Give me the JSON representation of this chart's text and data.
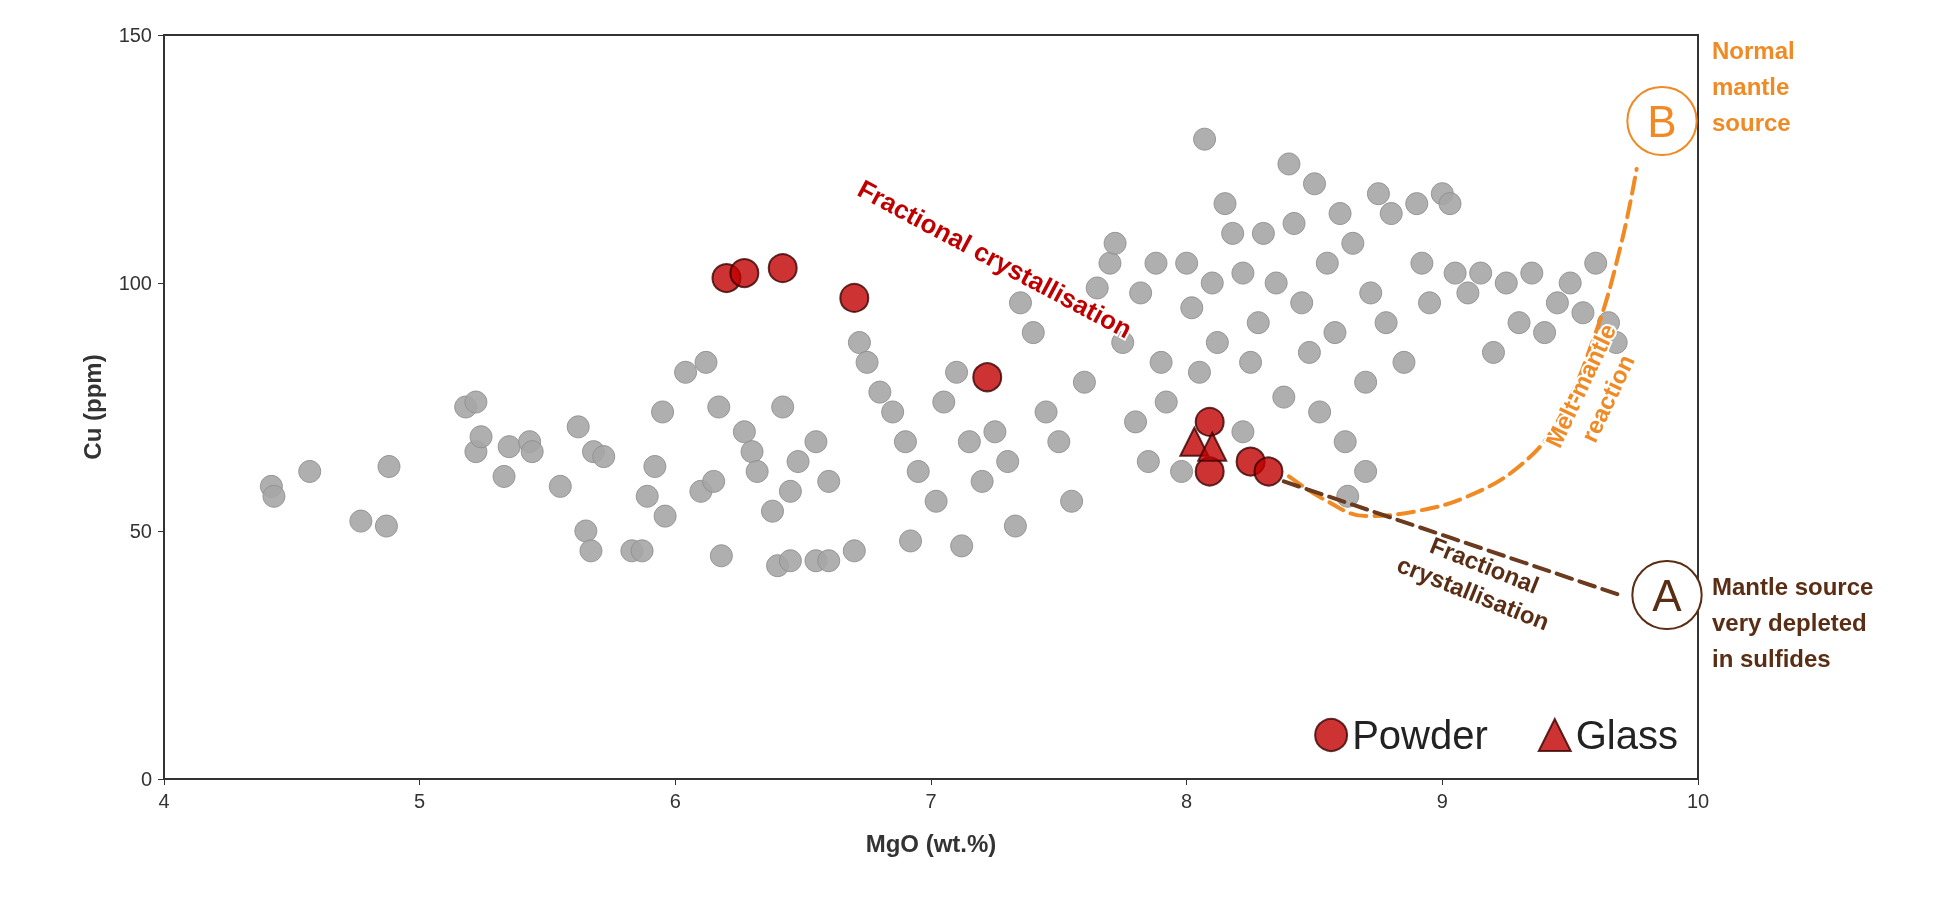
{
  "chart_data": {
    "type": "scatter",
    "xlabel": "MgO (wt.%)",
    "ylabel": "Cu (ppm)",
    "xlim": [
      4,
      10
    ],
    "xticks": [
      4,
      5,
      6,
      7,
      8,
      9,
      10
    ],
    "ylim": [
      0,
      150
    ],
    "yticks": [
      0,
      50,
      100,
      150
    ],
    "grid": false,
    "legend": "bottom right",
    "series": [
      {
        "color": "#a6a6a6",
        "marker": "circle",
        "x": [
          4.42,
          4.43,
          4.57,
          4.77,
          4.87,
          4.88,
          5.18,
          5.22,
          5.22,
          5.24,
          5.33,
          5.35,
          5.43,
          5.44,
          5.55,
          5.62,
          5.65,
          5.67,
          5.68,
          5.72,
          5.83,
          5.87,
          5.89,
          5.92,
          5.95,
          5.96,
          6.04,
          6.12,
          6.1,
          6.15,
          6.18,
          6.17,
          6.27,
          6.3,
          6.32,
          6.4,
          6.45,
          6.55,
          6.6,
          6.38,
          6.42,
          6.45,
          6.48,
          6.55,
          6.6,
          6.7,
          6.72,
          6.75,
          6.8,
          6.85,
          6.9,
          6.92,
          6.95,
          7.02,
          7.05,
          7.1,
          7.15,
          7.2,
          7.12,
          7.25,
          7.3,
          7.33,
          7.35,
          7.4,
          7.45,
          7.5,
          7.55,
          7.6,
          7.65,
          7.7,
          7.72,
          7.75,
          7.8,
          7.82,
          7.85,
          7.88,
          7.9,
          7.92,
          7.98,
          8.0,
          8.02,
          8.05,
          8.07,
          8.1,
          8.12,
          8.15,
          8.18,
          8.22,
          8.25,
          8.28,
          8.3,
          8.35,
          8.38,
          8.4,
          8.42,
          8.45,
          8.48,
          8.5,
          8.52,
          8.55,
          8.58,
          8.6,
          8.62,
          8.65,
          8.7,
          8.72,
          8.75,
          8.78,
          8.8,
          8.85,
          8.9,
          8.92,
          8.95,
          9.0,
          9.03,
          9.05,
          9.1,
          9.15,
          9.2,
          9.25,
          9.3,
          9.35,
          9.4,
          9.45,
          9.5,
          9.55,
          9.6,
          9.65,
          9.68,
          8.63,
          8.7,
          8.22
        ],
        "values": [
          59,
          57,
          62,
          52,
          51,
          63,
          75,
          76,
          66,
          69,
          61,
          67,
          68,
          66,
          59,
          71,
          50,
          46,
          66,
          65,
          46,
          46,
          57,
          63,
          74,
          53,
          82,
          84,
          58,
          60,
          45,
          75,
          70,
          66,
          62,
          43,
          44,
          44,
          44,
          54,
          75,
          58,
          64,
          68,
          60,
          46,
          88,
          84,
          78,
          74,
          68,
          48,
          62,
          56,
          76,
          82,
          68,
          60,
          47,
          70,
          64,
          51,
          96,
          90,
          74,
          68,
          56,
          80,
          99,
          104,
          108,
          88,
          72,
          98,
          64,
          104,
          84,
          76,
          62,
          104,
          95,
          82,
          129,
          100,
          88,
          116,
          110,
          102,
          84,
          92,
          110,
          100,
          77,
          124,
          112,
          96,
          86,
          120,
          74,
          104,
          90,
          114,
          68,
          108,
          80,
          98,
          118,
          92,
          114,
          84,
          116,
          104,
          96,
          118,
          116,
          102,
          98,
          102,
          86,
          100,
          92,
          102,
          90,
          96,
          100,
          94,
          104,
          92,
          88,
          57,
          62,
          70
        ]
      },
      {
        "name": "Powder",
        "color": "#c00000",
        "marker": "circle",
        "x": [
          6.2,
          6.27,
          6.42,
          6.7,
          7.22,
          8.09,
          8.09,
          8.25,
          8.32
        ],
        "values": [
          101,
          102,
          103,
          97,
          81,
          72,
          62,
          64,
          62
        ]
      },
      {
        "name": "Glass",
        "color": "#c00000",
        "marker": "triangle",
        "x": [
          8.03,
          8.1
        ],
        "values": [
          68,
          67
        ]
      },
      {
        "type": "line",
        "color": "#f08a24",
        "line_style": "dashed",
        "marker": "none",
        "x": [
          8.4,
          8.55,
          8.7,
          8.9,
          9.1,
          9.3,
          9.45,
          9.6,
          9.7,
          9.76
        ],
        "values": [
          61,
          56,
          53,
          54,
          57,
          63,
          72,
          90,
          108,
          123
        ]
      },
      {
        "type": "line",
        "color": "#6b3a1f",
        "line_style": "dashed",
        "marker": "none",
        "x": [
          8.38,
          9.7
        ],
        "values": [
          60,
          37
        ]
      }
    ],
    "annotations": [
      "Fractional crystallisation",
      "Melt-mantle\nreaction",
      "Fractional\ncrystallisation",
      "A",
      "B",
      "Normal\nmantle\nsource",
      "Mantle source\nvery depleted\nin sulfides"
    ]
  }
}
